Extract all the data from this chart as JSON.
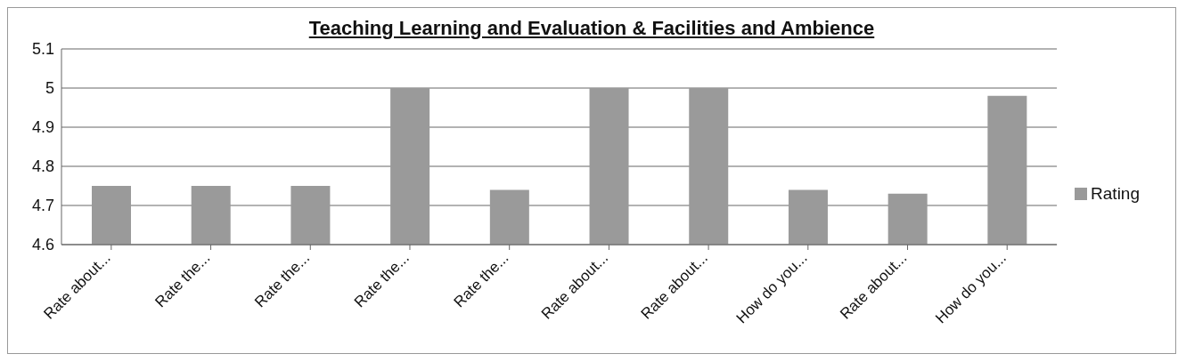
{
  "chart_data": {
    "type": "bar",
    "title": "Teaching Learning and Evaluation & Facilities and Ambience",
    "categories": [
      "Rate about...",
      "Rate the...",
      "Rate the...",
      "Rate the...",
      "Rate the...",
      "Rate about...",
      "Rate about...",
      "How do you...",
      "Rate about...",
      "How do you..."
    ],
    "series": [
      {
        "name": "Rating",
        "color": "#9a9a9a",
        "values": [
          4.75,
          4.75,
          4.75,
          5,
          4.74,
          5,
          5,
          4.74,
          4.73,
          4.98
        ]
      }
    ],
    "ylim": [
      4.6,
      5.1
    ],
    "yticks": [
      4.6,
      4.7,
      4.8,
      4.9,
      5,
      5.1
    ],
    "grid": "y",
    "legend": "right"
  }
}
